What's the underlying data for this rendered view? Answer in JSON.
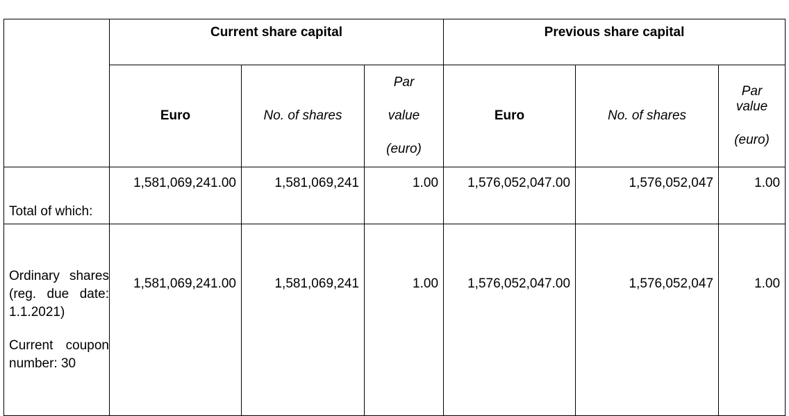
{
  "headers": {
    "current": "Current share capital",
    "previous": "Previous share capital",
    "euro": "Euro",
    "no_of_shares": "No. of shares",
    "par_line1": "Par",
    "par_line2": "value",
    "par_line3": "(euro)"
  },
  "rows": [
    {
      "label": "Total of which:",
      "current_euro": "1,581,069,241.00",
      "current_shares": "1,581,069,241",
      "current_par": "1.00",
      "previous_euro": "1,576,052,047.00",
      "previous_shares": "1,576,052,047",
      "previous_par": "1.00"
    },
    {
      "label_line1": "Ordinary shares (reg. due date: 1.1.2021)",
      "label_line2": "Current coupon number: 30",
      "current_euro": "1,581,069,241.00",
      "current_shares": "1,581,069,241",
      "current_par": "1.00",
      "previous_euro": "1,576,052,047.00",
      "previous_shares": "1,576,052,047",
      "previous_par": "1.00"
    }
  ]
}
